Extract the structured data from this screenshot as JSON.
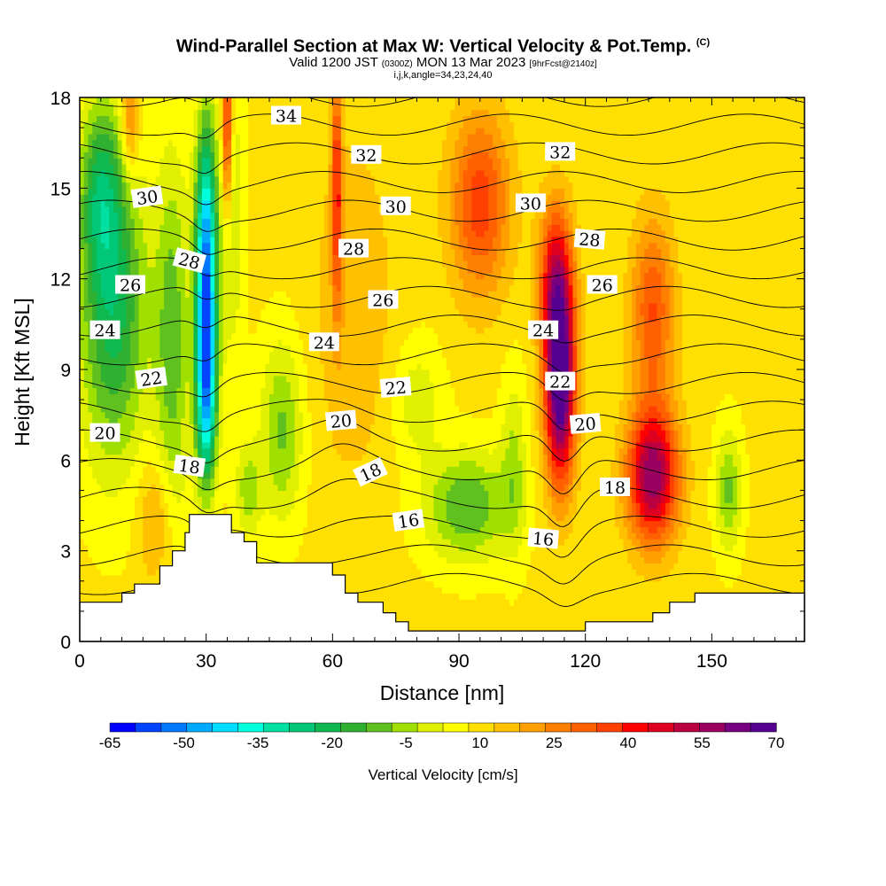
{
  "chart_data": {
    "type": "heatmap",
    "title": "Wind-Parallel Section at Max W: Vertical Velocity & Pot.Temp.",
    "title_mark": "(C)",
    "subtitle_main": "Valid 1200 JST",
    "subtitle_z": "(0300Z)",
    "subtitle_date": "MON 13 Mar 2023",
    "subtitle_fcst": "[9hrFcst@2140z]",
    "subsubtitle": "i,j,k,angle=34,23,24,40",
    "xlabel": "Distance [nm]",
    "ylabel": "Height [Kft MSL]",
    "xlim": [
      0,
      172
    ],
    "ylim": [
      0,
      18
    ],
    "x_ticks": [
      "0",
      "30",
      "60",
      "90",
      "120",
      "150"
    ],
    "x_tick_values": [
      0,
      30,
      60,
      90,
      120,
      150
    ],
    "y_ticks": [
      "0",
      "3",
      "6",
      "9",
      "12",
      "15",
      "18"
    ],
    "y_tick_values": [
      0,
      3,
      6,
      9,
      12,
      15,
      18
    ],
    "colorbar": {
      "label": "Vertical Velocity [cm/s]",
      "tick_labels": [
        "-65",
        "-50",
        "-35",
        "-20",
        "-5",
        "10",
        "25",
        "40",
        "55",
        "70"
      ],
      "tick_values": [
        -65,
        -50,
        -35,
        -20,
        -5,
        10,
        25,
        40,
        55,
        70
      ],
      "colors": [
        "#0000ff",
        "#0044ff",
        "#0077ff",
        "#00aaff",
        "#00ddff",
        "#00ffdd",
        "#00e0a0",
        "#00c878",
        "#10b850",
        "#30b030",
        "#60c020",
        "#a0e000",
        "#e0f000",
        "#ffff00",
        "#ffe000",
        "#ffc000",
        "#ffa000",
        "#ff8000",
        "#ff6000",
        "#ff4000",
        "#ff0000",
        "#dd0020",
        "#bb0040",
        "#990060",
        "#770080",
        "#550090"
      ]
    },
    "wind_cells": [
      {
        "x": 30,
        "z": 12.5,
        "sx": 2.5,
        "sz": 4.5,
        "w": -60
      },
      {
        "x": 30,
        "z": 8,
        "sx": 2.5,
        "sz": 3,
        "w": -40
      },
      {
        "x": 8,
        "z": 11,
        "sx": 8,
        "sz": 5,
        "w": -30
      },
      {
        "x": 5,
        "z": 15,
        "sx": 5,
        "sz": 3,
        "w": -22
      },
      {
        "x": 22,
        "z": 10,
        "sx": 4,
        "sz": 6,
        "w": -20
      },
      {
        "x": 48,
        "z": 7,
        "sx": 5,
        "sz": 3,
        "w": -18
      },
      {
        "x": 92,
        "z": 4.5,
        "sx": 10,
        "sz": 1.8,
        "w": -22
      },
      {
        "x": 103,
        "z": 6,
        "sx": 3,
        "sz": 3,
        "w": -12
      },
      {
        "x": 80,
        "z": 8,
        "sx": 6,
        "sz": 2,
        "w": -10
      },
      {
        "x": 154,
        "z": 5,
        "sx": 3,
        "sz": 2,
        "w": -18
      },
      {
        "x": 36,
        "z": 14,
        "sx": 3,
        "sz": 5,
        "w": -12
      },
      {
        "x": 40,
        "z": 5,
        "sx": 3,
        "sz": 1.5,
        "w": -15
      },
      {
        "x": 114,
        "z": 8.5,
        "sx": 3.5,
        "sz": 3.2,
        "w": 65
      },
      {
        "x": 113,
        "z": 12,
        "sx": 4,
        "sz": 2.5,
        "w": 35
      },
      {
        "x": 136,
        "z": 5.5,
        "sx": 6,
        "sz": 2.2,
        "w": 50
      },
      {
        "x": 136,
        "z": 11,
        "sx": 5,
        "sz": 3,
        "w": 25
      },
      {
        "x": 95,
        "z": 14.5,
        "sx": 7,
        "sz": 3,
        "w": 28
      },
      {
        "x": 61,
        "z": 15,
        "sx": 1.2,
        "sz": 4,
        "w": 30
      },
      {
        "x": 35,
        "z": 17,
        "sx": 1.2,
        "sz": 3,
        "w": 35
      },
      {
        "x": 12,
        "z": 17.5,
        "sx": 2,
        "sz": 2,
        "w": 20
      },
      {
        "x": 18,
        "z": 4,
        "sx": 4,
        "sz": 2,
        "w": 12
      },
      {
        "x": 65,
        "z": 11,
        "sx": 10,
        "sz": 6,
        "w": 8
      }
    ],
    "terrain": [
      [
        0,
        1.3
      ],
      [
        10,
        1.3
      ],
      [
        10,
        1.6
      ],
      [
        13,
        1.6
      ],
      [
        13,
        1.9
      ],
      [
        19,
        1.9
      ],
      [
        19,
        2.5
      ],
      [
        22,
        2.5
      ],
      [
        22,
        3.0
      ],
      [
        25,
        3.0
      ],
      [
        25,
        3.6
      ],
      [
        26,
        3.6
      ],
      [
        26,
        4.2
      ],
      [
        36,
        4.2
      ],
      [
        36,
        3.6
      ],
      [
        39,
        3.6
      ],
      [
        39,
        3.3
      ],
      [
        42,
        3.3
      ],
      [
        42,
        2.6
      ],
      [
        60,
        2.6
      ],
      [
        60,
        2.2
      ],
      [
        63,
        2.2
      ],
      [
        63,
        1.6
      ],
      [
        66,
        1.6
      ],
      [
        66,
        1.3
      ],
      [
        72,
        1.3
      ],
      [
        72,
        0.95
      ],
      [
        75,
        0.95
      ],
      [
        75,
        0.65
      ],
      [
        78,
        0.65
      ],
      [
        78,
        0.35
      ],
      [
        92,
        0.35
      ],
      [
        92,
        0.35
      ],
      [
        111,
        0.35
      ],
      [
        111,
        0.35
      ],
      [
        120,
        0.35
      ],
      [
        120,
        0.65
      ],
      [
        136,
        0.65
      ],
      [
        136,
        0.95
      ],
      [
        140,
        0.95
      ],
      [
        140,
        1.3
      ],
      [
        146,
        1.3
      ],
      [
        146,
        1.6
      ],
      [
        172,
        1.6
      ]
    ],
    "theta_levels": [
      15,
      16,
      17,
      18,
      19,
      20,
      21,
      22,
      23,
      24,
      25,
      26,
      27,
      28,
      29,
      30,
      31,
      32,
      33,
      34,
      35
    ],
    "contour_labels": [
      {
        "text": "34",
        "x": 49,
        "z": 17.4,
        "rot": 0
      },
      {
        "text": "32",
        "x": 68,
        "z": 16.1,
        "rot": 0
      },
      {
        "text": "32",
        "x": 114,
        "z": 16.2,
        "rot": 0
      },
      {
        "text": "30",
        "x": 16,
        "z": 14.7,
        "rot": -8
      },
      {
        "text": "30",
        "x": 75,
        "z": 14.4,
        "rot": 0
      },
      {
        "text": "30",
        "x": 107,
        "z": 14.5,
        "rot": 0
      },
      {
        "text": "28",
        "x": 26,
        "z": 12.6,
        "rot": 15
      },
      {
        "text": "28",
        "x": 65,
        "z": 13.0,
        "rot": 0
      },
      {
        "text": "28",
        "x": 121,
        "z": 13.3,
        "rot": 5
      },
      {
        "text": "26",
        "x": 12,
        "z": 11.8,
        "rot": 0
      },
      {
        "text": "26",
        "x": 72,
        "z": 11.3,
        "rot": 0
      },
      {
        "text": "26",
        "x": 124,
        "z": 11.8,
        "rot": 0
      },
      {
        "text": "24",
        "x": 6,
        "z": 10.3,
        "rot": 0
      },
      {
        "text": "24",
        "x": 58,
        "z": 9.9,
        "rot": 0
      },
      {
        "text": "24",
        "x": 110,
        "z": 10.3,
        "rot": 0
      },
      {
        "text": "22",
        "x": 17,
        "z": 8.7,
        "rot": -8
      },
      {
        "text": "22",
        "x": 75,
        "z": 8.4,
        "rot": -5
      },
      {
        "text": "22",
        "x": 114,
        "z": 8.6,
        "rot": 0
      },
      {
        "text": "20",
        "x": 6,
        "z": 6.9,
        "rot": 0
      },
      {
        "text": "20",
        "x": 62,
        "z": 7.3,
        "rot": -5
      },
      {
        "text": "20",
        "x": 120,
        "z": 7.2,
        "rot": -5
      },
      {
        "text": "18",
        "x": 26,
        "z": 5.8,
        "rot": 8
      },
      {
        "text": "18",
        "x": 69,
        "z": 5.6,
        "rot": -25
      },
      {
        "text": "18",
        "x": 127,
        "z": 5.1,
        "rot": 0
      },
      {
        "text": "16",
        "x": 78,
        "z": 4.0,
        "rot": -8
      },
      {
        "text": "16",
        "x": 110,
        "z": 3.4,
        "rot": 5
      }
    ]
  }
}
